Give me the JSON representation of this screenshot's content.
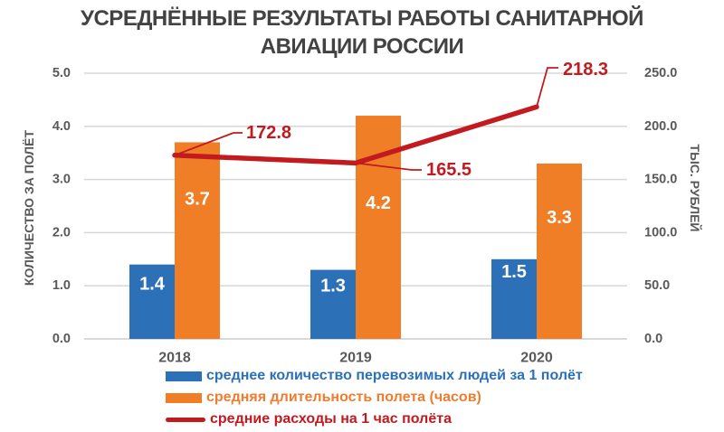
{
  "title": {
    "line1": "УСРЕДНЁННЫЕ РЕЗУЛЬТАТЫ РАБОТЫ САНИТАРНОЙ",
    "line2": "АВИАЦИИ РОССИИ"
  },
  "colors": {
    "blue": "#2C70B8",
    "orange": "#F07E27",
    "red": "#C21A1F",
    "title_text": "#424242",
    "axis_text": "#595959",
    "gridline": "#D9D9D9"
  },
  "chart_data": {
    "type": "bar",
    "subtype": "combo-bar-line",
    "categories": [
      "2018",
      "2019",
      "2020"
    ],
    "series": [
      {
        "name": "среднее количество перевозимых людей за 1 полёт",
        "type": "bar",
        "axis": "left",
        "color": "#2C70B8",
        "values": [
          1.4,
          1.3,
          1.5
        ],
        "labels": [
          "1.4",
          "1.3",
          "1.5"
        ]
      },
      {
        "name": "средняя длительность полета (часов)",
        "type": "bar",
        "axis": "left",
        "color": "#F07E27",
        "values": [
          3.7,
          4.2,
          3.3
        ],
        "labels": [
          "3.7",
          "4.2",
          "3.3"
        ]
      },
      {
        "name": "средние расходы на 1 час полёта",
        "type": "line",
        "axis": "right",
        "color": "#C21A1F",
        "values": [
          172.8,
          165.5,
          218.3
        ],
        "labels": [
          "172.8",
          "165.5",
          "218.3"
        ]
      }
    ],
    "left_axis": {
      "title": "КОЛИЧЕСТВО ЗА ПОЛЁТ",
      "min": 0,
      "max": 5,
      "step": 1,
      "ticks": [
        "0.0",
        "1.0",
        "2.0",
        "3.0",
        "4.0",
        "5.0"
      ]
    },
    "right_axis": {
      "title": "ТЫС. РУБЛЕЙ",
      "min": 0,
      "max": 250,
      "step": 50,
      "ticks": [
        "0.0",
        "50.0",
        "100.0",
        "150.0",
        "200.0",
        "250.0"
      ]
    },
    "grid": true,
    "legend_position": "bottom-left"
  }
}
